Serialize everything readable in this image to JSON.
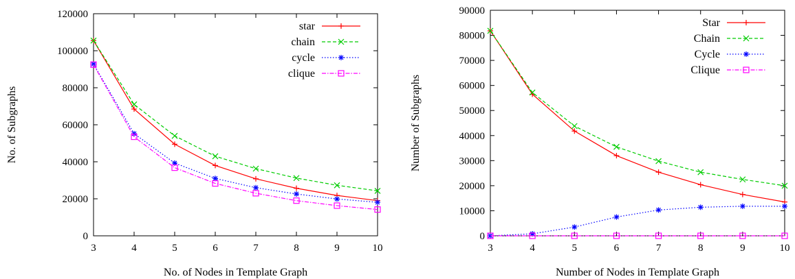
{
  "chart_data": [
    {
      "type": "line",
      "title": "",
      "xlabel": "No. of Nodes in Template Graph",
      "ylabel": "No. of Subgraphs",
      "x": [
        3,
        4,
        5,
        6,
        7,
        8,
        9,
        10
      ],
      "xlim": [
        3,
        10
      ],
      "ylim": [
        0,
        120000
      ],
      "xticks": [
        "3",
        "4",
        "5",
        "6",
        "7",
        "8",
        "9",
        "10"
      ],
      "yticks": [
        "0",
        "20000",
        "40000",
        "60000",
        "80000",
        "100000",
        "120000"
      ],
      "grid": false,
      "legend_position": "top-right",
      "series": [
        {
          "name": "star",
          "color": "#ff0000",
          "marker": "plus",
          "dash": "solid",
          "values": [
            105500,
            68500,
            49500,
            38000,
            30800,
            25700,
            21800,
            19000
          ]
        },
        {
          "name": "chain",
          "color": "#00cc00",
          "marker": "cross",
          "dash": "dashed",
          "values": [
            105500,
            71000,
            54000,
            43000,
            36300,
            31200,
            27300,
            24300
          ]
        },
        {
          "name": "cycle",
          "color": "#0000ff",
          "marker": "star",
          "dash": "dotted",
          "values": [
            92800,
            55200,
            39300,
            31000,
            26000,
            22600,
            19900,
            18100
          ]
        },
        {
          "name": "clique",
          "color": "#ff00ff",
          "marker": "square",
          "dash": "dashdot",
          "values": [
            92500,
            53500,
            36800,
            28300,
            23000,
            19000,
            16300,
            14200
          ]
        }
      ]
    },
    {
      "type": "line",
      "title": "",
      "xlabel": "Number of Nodes in Template Graph",
      "ylabel": "Number of Subgraphs",
      "x": [
        3,
        4,
        5,
        6,
        7,
        8,
        9,
        10
      ],
      "xlim": [
        3,
        10
      ],
      "ylim": [
        0,
        90000
      ],
      "xticks": [
        "3",
        "4",
        "5",
        "6",
        "7",
        "8",
        "9",
        "10"
      ],
      "yticks": [
        "0",
        "10000",
        "20000",
        "30000",
        "40000",
        "50000",
        "60000",
        "70000",
        "80000",
        "90000"
      ],
      "grid": false,
      "legend_position": "top-right",
      "series": [
        {
          "name": "Star",
          "color": "#ff0000",
          "marker": "plus",
          "dash": "solid",
          "values": [
            81800,
            56500,
            41800,
            32000,
            25400,
            20400,
            16500,
            13500
          ]
        },
        {
          "name": "Chain",
          "color": "#00cc00",
          "marker": "cross",
          "dash": "dashed",
          "values": [
            81800,
            57200,
            43800,
            35500,
            29800,
            25400,
            22500,
            20000
          ]
        },
        {
          "name": "Cycle",
          "color": "#0000ff",
          "marker": "star",
          "dash": "dotted",
          "values": [
            0,
            800,
            3500,
            7500,
            10300,
            11400,
            11800,
            11800
          ]
        },
        {
          "name": "Clique",
          "color": "#ff00ff",
          "marker": "square",
          "dash": "dashdot",
          "values": [
            0,
            0,
            0,
            0,
            0,
            0,
            0,
            0
          ]
        }
      ]
    }
  ]
}
